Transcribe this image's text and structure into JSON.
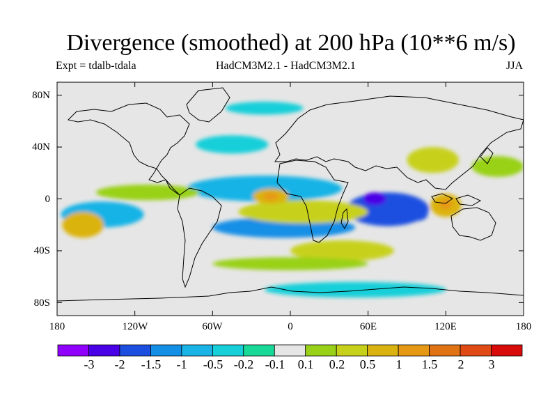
{
  "header": {
    "title": "Divergence (smoothed) at 200 hPa (10**6 m/s)",
    "expt": "Expt = tdalb-tdala",
    "models": "HadCM3M2.1 - HadCM3M2.1",
    "season": "JJA"
  },
  "map": {
    "projection": "cylindrical-equidistant",
    "lon_range": [
      -180,
      180
    ],
    "lat_range": [
      -90,
      90
    ],
    "background_color": "#e6e6e6",
    "lat_ticks": [
      {
        "value": 80,
        "label": "80N"
      },
      {
        "value": 40,
        "label": "40N"
      },
      {
        "value": 0,
        "label": "0"
      },
      {
        "value": -40,
        "label": "40S"
      },
      {
        "value": -80,
        "label": "80S"
      }
    ],
    "lon_ticks": [
      {
        "value": -180,
        "label": "180"
      },
      {
        "value": -120,
        "label": "120W"
      },
      {
        "value": -60,
        "label": "60W"
      },
      {
        "value": 0,
        "label": "0"
      },
      {
        "value": 60,
        "label": "60E"
      },
      {
        "value": 120,
        "label": "120E"
      },
      {
        "value": 180,
        "label": "180"
      }
    ]
  },
  "features": [
    {
      "name": "north-atlantic-convergence",
      "lon": -45,
      "lat": 42,
      "rx": 28,
      "ry": 7,
      "level": -0.2
    },
    {
      "name": "tropical-atlantic-convergence",
      "lon": -20,
      "lat": 8,
      "rx": 60,
      "ry": 10,
      "level": -0.5
    },
    {
      "name": "south-pacific-convergence",
      "lon": -145,
      "lat": -12,
      "rx": 32,
      "ry": 10,
      "level": -0.5
    },
    {
      "name": "south-atlantic-convergence",
      "lon": -5,
      "lat": -22,
      "rx": 55,
      "ry": 8,
      "level": -1
    },
    {
      "name": "indian-ocean-convergence",
      "lon": 75,
      "lat": -8,
      "rx": 32,
      "ry": 13,
      "level": -1.5
    },
    {
      "name": "indian-ocean-convergence-core",
      "lon": 65,
      "lat": 0,
      "rx": 9,
      "ry": 5,
      "level": -2
    },
    {
      "name": "indian-ocean-convergence-secondary",
      "lon": 98,
      "lat": -12,
      "rx": 8,
      "ry": 5,
      "level": -1.5
    },
    {
      "name": "antarctic-coast-convergence",
      "lon": 50,
      "lat": -70,
      "rx": 70,
      "ry": 6,
      "level": -0.2
    },
    {
      "name": "african-divergence",
      "lon": 10,
      "lat": -10,
      "rx": 50,
      "ry": 9,
      "level": 0.5
    },
    {
      "name": "west-african-divergence",
      "lon": -15,
      "lat": 2,
      "rx": 14,
      "ry": 6,
      "level": 1
    },
    {
      "name": "west-african-divergence-core",
      "lon": -15,
      "lat": 2,
      "rx": 6,
      "ry": 3,
      "level": 1.5
    },
    {
      "name": "south-pacific-divergence",
      "lon": -160,
      "lat": -20,
      "rx": 16,
      "ry": 10,
      "level": 1
    },
    {
      "name": "tropical-pacific-divergence",
      "lon": -110,
      "lat": 5,
      "rx": 40,
      "ry": 6,
      "level": 0.2
    },
    {
      "name": "maritime-continent-divergence",
      "lon": 120,
      "lat": -5,
      "rx": 12,
      "ry": 9,
      "level": 1
    },
    {
      "name": "maritime-continent-divergence-core",
      "lon": 120,
      "lat": -4,
      "rx": 5,
      "ry": 4,
      "level": 1.5
    },
    {
      "name": "asian-divergence",
      "lon": 110,
      "lat": 30,
      "rx": 20,
      "ry": 10,
      "level": 0.5
    },
    {
      "name": "southern-indian-divergence",
      "lon": 40,
      "lat": -40,
      "rx": 40,
      "ry": 8,
      "level": 0.5
    },
    {
      "name": "north-pacific-divergence",
      "lon": 160,
      "lat": 25,
      "rx": 20,
      "ry": 8,
      "level": 0.2
    },
    {
      "name": "southern-ocean-divergence",
      "lon": 0,
      "lat": -50,
      "rx": 60,
      "ry": 5,
      "level": 0.2
    },
    {
      "name": "arctic-convergence",
      "lon": -20,
      "lat": 70,
      "rx": 30,
      "ry": 5,
      "level": -0.2
    }
  ],
  "colorbar": {
    "colors": [
      "#8f00ff",
      "#4a00e6",
      "#1c4fe0",
      "#138fe6",
      "#19b3e6",
      "#17cfd9",
      "#19d999",
      "#e6e6e6",
      "#99d119",
      "#c7d11c",
      "#dbb311",
      "#e69914",
      "#e07314",
      "#e04a14",
      "#d90a0a"
    ],
    "labels": [
      "-3",
      "-2",
      "-1.5",
      "-1",
      "-0.5",
      "-0.2",
      "-0.1",
      "0.1",
      "0.2",
      "0.5",
      "1",
      "1.5",
      "2",
      "3"
    ]
  }
}
